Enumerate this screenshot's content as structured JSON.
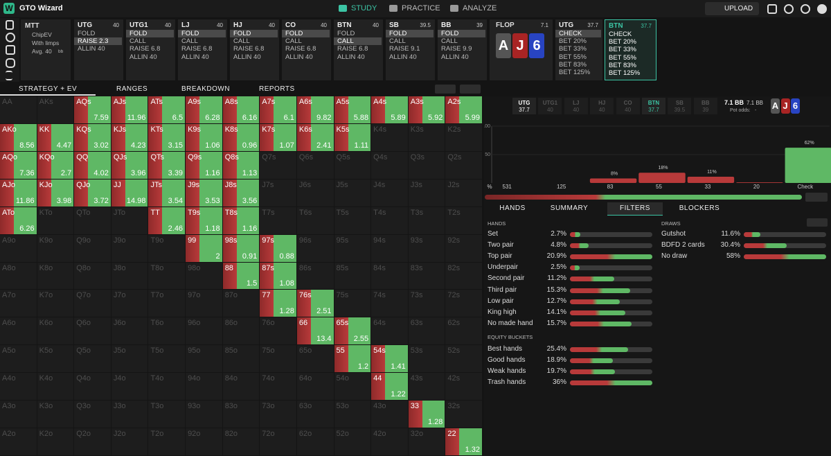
{
  "nav": {
    "logo": "W",
    "brand": "GTO Wizard",
    "tabs": [
      "STUDY",
      "PRACTICE",
      "ANALYZE"
    ],
    "active": 0,
    "upload": "UPLOAD"
  },
  "info": {
    "format": "MTT",
    "items": [
      "ChipEV",
      "With limps"
    ],
    "avg": "Avg. 40",
    "avg_unit": "bb"
  },
  "preflop": [
    {
      "pos": "UTG",
      "stack": 40,
      "options": [
        "FOLD",
        "RAISE 2.3",
        "ALLIN 40"
      ],
      "selected": 1
    },
    {
      "pos": "UTG1",
      "stack": 40,
      "options": [
        "FOLD",
        "CALL",
        "RAISE 6.8",
        "ALLIN 40"
      ],
      "selected": 0
    },
    {
      "pos": "LJ",
      "stack": 40,
      "options": [
        "FOLD",
        "CALL",
        "RAISE 6.8",
        "ALLIN 40"
      ],
      "selected": 0
    },
    {
      "pos": "HJ",
      "stack": 40,
      "options": [
        "FOLD",
        "CALL",
        "RAISE 6.8",
        "ALLIN 40"
      ],
      "selected": 0
    },
    {
      "pos": "CO",
      "stack": 40,
      "options": [
        "FOLD",
        "CALL",
        "RAISE 6.8",
        "ALLIN 40"
      ],
      "selected": 0
    },
    {
      "pos": "BTN",
      "stack": 40,
      "options": [
        "FOLD",
        "CALL",
        "RAISE 6.8",
        "ALLIN 40"
      ],
      "selected": 1
    },
    {
      "pos": "SB",
      "stack": 39.5,
      "options": [
        "FOLD",
        "CALL",
        "RAISE 9.1",
        "ALLIN 40"
      ],
      "selected": 0
    },
    {
      "pos": "BB",
      "stack": 39,
      "options": [
        "FOLD",
        "CALL",
        "RAISE 9.9",
        "ALLIN 40"
      ],
      "selected": 0
    }
  ],
  "flop": {
    "label": "FLOP",
    "pot": 7.1,
    "cards": [
      "A",
      "J",
      "6"
    ]
  },
  "postflop": [
    {
      "pos": "UTG",
      "stack": 37.7,
      "options": [
        "CHECK",
        "BET 20%",
        "BET 33%",
        "BET 55%",
        "BET 83%",
        "BET 125%"
      ],
      "selected": 0
    },
    {
      "pos": "BTN",
      "stack": 37.7,
      "options": [
        "CHECK",
        "BET 20%",
        "BET 33%",
        "BET 55%",
        "BET 83%",
        "BET 125%"
      ],
      "active": true
    }
  ],
  "view_tabs": [
    "STRATEGY + EV",
    "RANGES",
    "BREAKDOWN",
    "REPORTS"
  ],
  "matrix": [
    [
      [
        "AA"
      ],
      [
        "AKs"
      ],
      [
        "AQs",
        7.59
      ],
      [
        "AJs",
        11.96
      ],
      [
        "ATs",
        6.5
      ],
      [
        "A9s",
        6.28
      ],
      [
        "A8s",
        6.16
      ],
      [
        "A7s",
        6.1
      ],
      [
        "A6s",
        9.82
      ],
      [
        "A5s",
        5.88
      ],
      [
        "A4s",
        5.89
      ],
      [
        "A3s",
        5.92
      ],
      [
        "A2s",
        5.99
      ]
    ],
    [
      [
        "AKo",
        8.56
      ],
      [
        "KK",
        4.47
      ],
      [
        "KQs",
        3.02
      ],
      [
        "KJs",
        4.23
      ],
      [
        "KTs",
        3.15
      ],
      [
        "K9s",
        1.06
      ],
      [
        "K8s",
        0.96
      ],
      [
        "K7s",
        1.07
      ],
      [
        "K6s",
        2.41
      ],
      [
        "K5s",
        1.11
      ],
      [
        "K4s"
      ],
      [
        "K3s"
      ],
      [
        "K2s"
      ]
    ],
    [
      [
        "AQo",
        7.36
      ],
      [
        "KQo",
        2.7
      ],
      [
        "QQ",
        4.02
      ],
      [
        "QJs",
        3.96
      ],
      [
        "QTs",
        3.39
      ],
      [
        "Q9s",
        1.16
      ],
      [
        "Q8s",
        1.13
      ],
      [
        "Q7s"
      ],
      [
        "Q6s"
      ],
      [
        "Q5s"
      ],
      [
        "Q4s"
      ],
      [
        "Q3s"
      ],
      [
        "Q2s"
      ]
    ],
    [
      [
        "AJo",
        11.86
      ],
      [
        "KJo",
        3.98
      ],
      [
        "QJo",
        3.72
      ],
      [
        "JJ",
        14.98
      ],
      [
        "JTs",
        3.54
      ],
      [
        "J9s",
        3.53
      ],
      [
        "J8s",
        3.56
      ],
      [
        "J7s"
      ],
      [
        "J6s"
      ],
      [
        "J5s"
      ],
      [
        "J4s"
      ],
      [
        "J3s"
      ],
      [
        "J2s"
      ]
    ],
    [
      [
        "ATo",
        6.26
      ],
      [
        "KTo"
      ],
      [
        "QTo"
      ],
      [
        "JTo"
      ],
      [
        "TT",
        2.46
      ],
      [
        "T9s",
        1.18
      ],
      [
        "T8s",
        1.16
      ],
      [
        "T7s"
      ],
      [
        "T6s"
      ],
      [
        "T5s"
      ],
      [
        "T4s"
      ],
      [
        "T3s"
      ],
      [
        "T2s"
      ]
    ],
    [
      [
        "A9o"
      ],
      [
        "K9o"
      ],
      [
        "Q9o"
      ],
      [
        "J9o"
      ],
      [
        "T9o"
      ],
      [
        "99",
        2
      ],
      [
        "98s",
        0.91
      ],
      [
        "97s",
        0.88
      ],
      [
        "96s"
      ],
      [
        "95s"
      ],
      [
        "94s"
      ],
      [
        "93s"
      ],
      [
        "92s"
      ]
    ],
    [
      [
        "A8o"
      ],
      [
        "K8o"
      ],
      [
        "Q8o"
      ],
      [
        "J8o"
      ],
      [
        "T8o"
      ],
      [
        "98o"
      ],
      [
        "88",
        1.5
      ],
      [
        "87s",
        1.08
      ],
      [
        "86s"
      ],
      [
        "85s"
      ],
      [
        "84s"
      ],
      [
        "83s"
      ],
      [
        "82s"
      ]
    ],
    [
      [
        "A7o"
      ],
      [
        "K7o"
      ],
      [
        "Q7o"
      ],
      [
        "J7o"
      ],
      [
        "T7o"
      ],
      [
        "97o"
      ],
      [
        "87o"
      ],
      [
        "77",
        1.28
      ],
      [
        "76s",
        2.51
      ],
      [
        "75s"
      ],
      [
        "74s"
      ],
      [
        "73s"
      ],
      [
        "72s"
      ]
    ],
    [
      [
        "A6o"
      ],
      [
        "K6o"
      ],
      [
        "Q6o"
      ],
      [
        "J6o"
      ],
      [
        "T6o"
      ],
      [
        "96o"
      ],
      [
        "86o"
      ],
      [
        "76o"
      ],
      [
        "66",
        13.4
      ],
      [
        "65s",
        2.55
      ],
      [
        "64s"
      ],
      [
        "63s"
      ],
      [
        "62s"
      ]
    ],
    [
      [
        "A5o"
      ],
      [
        "K5o"
      ],
      [
        "Q5o"
      ],
      [
        "J5o"
      ],
      [
        "T5o"
      ],
      [
        "95o"
      ],
      [
        "85o"
      ],
      [
        "75o"
      ],
      [
        "65o"
      ],
      [
        "55",
        1.2
      ],
      [
        "54s",
        1.41
      ],
      [
        "53s"
      ],
      [
        "52s"
      ]
    ],
    [
      [
        "A4o"
      ],
      [
        "K4o"
      ],
      [
        "Q4o"
      ],
      [
        "J4o"
      ],
      [
        "T4o"
      ],
      [
        "94o"
      ],
      [
        "84o"
      ],
      [
        "74o"
      ],
      [
        "64o"
      ],
      [
        "54o"
      ],
      [
        "44",
        1.22
      ],
      [
        "43s"
      ],
      [
        "42s"
      ]
    ],
    [
      [
        "A3o"
      ],
      [
        "K3o"
      ],
      [
        "Q3o"
      ],
      [
        "J3o"
      ],
      [
        "T3o"
      ],
      [
        "93o"
      ],
      [
        "83o"
      ],
      [
        "73o"
      ],
      [
        "63o"
      ],
      [
        "53o"
      ],
      [
        "43o"
      ],
      [
        "33",
        1.28
      ],
      [
        "32s"
      ]
    ],
    [
      [
        "A2o"
      ],
      [
        "K2o"
      ],
      [
        "Q2o"
      ],
      [
        "J2o"
      ],
      [
        "T2o"
      ],
      [
        "92o"
      ],
      [
        "82o"
      ],
      [
        "72o"
      ],
      [
        "62o"
      ],
      [
        "52o"
      ],
      [
        "42o"
      ],
      [
        "32o"
      ],
      [
        "22",
        1.32
      ]
    ]
  ],
  "players": [
    {
      "pos": "UTG",
      "stack": 37.7
    },
    {
      "pos": "UTG1",
      "stack": 40
    },
    {
      "pos": "LJ",
      "stack": 40
    },
    {
      "pos": "HJ",
      "stack": 40
    },
    {
      "pos": "CO",
      "stack": 40
    },
    {
      "pos": "BTN",
      "stack": 37.7
    },
    {
      "pos": "SB",
      "stack": 39.5
    },
    {
      "pos": "BB",
      "stack": 39
    }
  ],
  "active_player": 5,
  "pot": {
    "value": "7.1 BB",
    "alt": "7.1 BB",
    "odds_label": "Pot odds:",
    "odds": "-"
  },
  "ev_chart": {
    "type": "bar",
    "y_label": "%",
    "categories": [
      "531",
      "125",
      "83",
      "55",
      "33",
      "20",
      "Check"
    ],
    "values": [
      0,
      0,
      8,
      18,
      11,
      1,
      62
    ],
    "value_labels": [
      null,
      null,
      "8%",
      "18%",
      "11%",
      null,
      "62%"
    ],
    "ylim": [
      0,
      100
    ],
    "yticks": [
      50,
      100
    ]
  },
  "panel_tabs": [
    "HANDS",
    "SUMMARY",
    "FILTERS",
    "BLOCKERS"
  ],
  "panel_active": 2,
  "filters": {
    "hands_title": "HANDS",
    "hands": [
      {
        "name": "Set",
        "value": 2.7,
        "label": "2.7%"
      },
      {
        "name": "Two pair",
        "value": 4.8,
        "label": "4.8%"
      },
      {
        "name": "Top pair",
        "value": 20.9,
        "label": "20.9%"
      },
      {
        "name": "Underpair",
        "value": 2.5,
        "label": "2.5%"
      },
      {
        "name": "Second pair",
        "value": 11.2,
        "label": "11.2%"
      },
      {
        "name": "Third pair",
        "value": 15.3,
        "label": "15.3%"
      },
      {
        "name": "Low pair",
        "value": 12.7,
        "label": "12.7%"
      },
      {
        "name": "King high",
        "value": 14.1,
        "label": "14.1%"
      },
      {
        "name": "No made hand",
        "value": 15.7,
        "label": "15.7%"
      }
    ],
    "equity_title": "EQUITY BUCKETS",
    "equity": [
      {
        "name": "Best hands",
        "value": 25.4,
        "label": "25.4%"
      },
      {
        "name": "Good hands",
        "value": 18.9,
        "label": "18.9%"
      },
      {
        "name": "Weak hands",
        "value": 19.7,
        "label": "19.7%"
      },
      {
        "name": "Trash hands",
        "value": 36,
        "label": "36%"
      }
    ],
    "draws_title": "DRAWS",
    "draws": [
      {
        "name": "Gutshot",
        "value": 11.6,
        "label": "11.6%"
      },
      {
        "name": "BDFD 2 cards",
        "value": 30.4,
        "label": "30.4%"
      },
      {
        "name": "No draw",
        "value": 58,
        "label": "58%"
      }
    ]
  }
}
